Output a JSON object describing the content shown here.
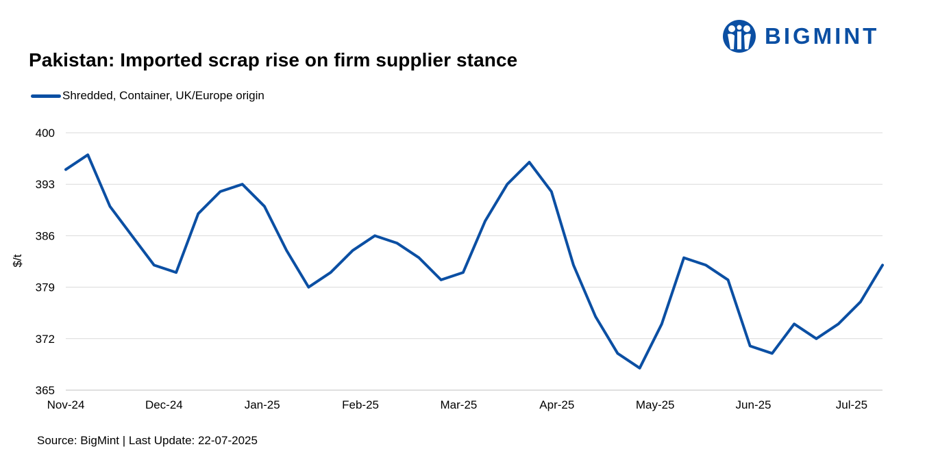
{
  "brand": {
    "name": "BIGMINT",
    "color": "#0b4fa3",
    "icon": "people-globe-logo-icon"
  },
  "footer": {
    "source": "Source: BigMint | Last Update: 22-07-2025"
  },
  "chart_data": {
    "type": "line",
    "title": "Pakistan: Imported scrap rise on firm supplier stance",
    "xlabel": "",
    "ylabel": "$/t",
    "ylim": [
      365,
      400
    ],
    "yticks": [
      365,
      372,
      379,
      386,
      393,
      400
    ],
    "xtick_labels": [
      "Nov-24",
      "Dec-24",
      "Jan-25",
      "Feb-25",
      "Mar-25",
      "Apr-25",
      "May-25",
      "Jun-25",
      "Jul-25"
    ],
    "grid": true,
    "legend_position": "top-left",
    "series": [
      {
        "name": "Shredded, Container, UK/Europe origin",
        "color": "#0b4fa3",
        "values": [
          395,
          397,
          390,
          386,
          382,
          381,
          389,
          392,
          393,
          390,
          384,
          379,
          381,
          384,
          386,
          385,
          383,
          380,
          381,
          388,
          393,
          396,
          392,
          382,
          375,
          370,
          368,
          374,
          383,
          382,
          380,
          371,
          370,
          374,
          372,
          374,
          377,
          382
        ]
      }
    ]
  }
}
